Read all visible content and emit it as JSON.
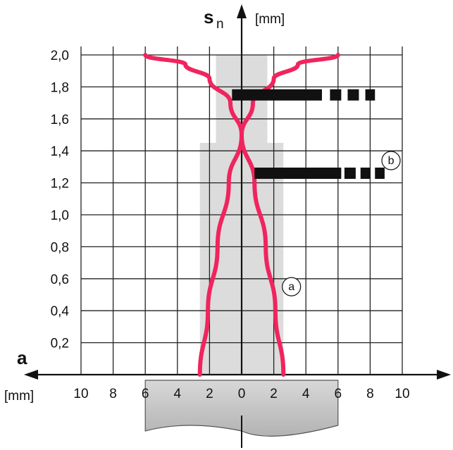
{
  "chart_data": {
    "type": "line",
    "y_axis": {
      "title": "s",
      "title_subscript": "n",
      "unit": "[mm]",
      "ticks": [
        "0,2",
        "0,4",
        "0,6",
        "0,8",
        "1,0",
        "1,2",
        "1,4",
        "1,6",
        "1,8",
        "2,0"
      ],
      "range": [
        0,
        2.0
      ]
    },
    "x_axis": {
      "title": "a",
      "unit": "[mm]",
      "ticks_left": [
        "10",
        "8",
        "6",
        "4",
        "2"
      ],
      "ticks_center": "0",
      "ticks_right": [
        "2",
        "4",
        "6",
        "8",
        "10"
      ],
      "range": [
        -10,
        10
      ]
    },
    "grid": true,
    "series": [
      {
        "marker": "a",
        "color": "#f0245e",
        "x": [
          2.6,
          2.1,
          1.5,
          0.8,
          0.0,
          -0.7,
          -2.0,
          -3.5,
          -6.0
        ],
        "y": [
          0.0,
          0.4,
          0.8,
          1.2,
          1.5,
          1.7,
          1.85,
          1.94,
          2.0
        ]
      },
      {
        "marker": "",
        "color": "#f0245e",
        "x": [
          -2.6,
          -2.1,
          -1.5,
          -0.8,
          0.0,
          0.7,
          2.0,
          3.5,
          6.0
        ],
        "y": [
          0.0,
          0.4,
          0.8,
          1.2,
          1.5,
          1.7,
          1.85,
          1.94,
          2.0
        ]
      }
    ],
    "bars": [
      {
        "marker": "",
        "y": 1.75,
        "x_start": -0.6,
        "solid_end": 5.0,
        "dashes": [
          [
            5.5,
            6.2
          ],
          [
            6.6,
            7.3
          ],
          [
            7.7,
            8.3
          ]
        ]
      },
      {
        "marker": "b",
        "y": 1.26,
        "x_start": 0.8,
        "solid_end": 6.2,
        "dashes": [
          [
            6.4,
            7.1
          ],
          [
            7.4,
            8.0
          ],
          [
            8.3,
            8.9
          ]
        ]
      }
    ],
    "shaded_zone": {
      "x_range": [
        -2.6,
        2.6
      ],
      "narrow_x_range": [
        -1.6,
        1.6
      ],
      "narrow_from_y": 1.45
    },
    "target_plate": {
      "x_range": [
        -6.0,
        6.0
      ]
    }
  }
}
